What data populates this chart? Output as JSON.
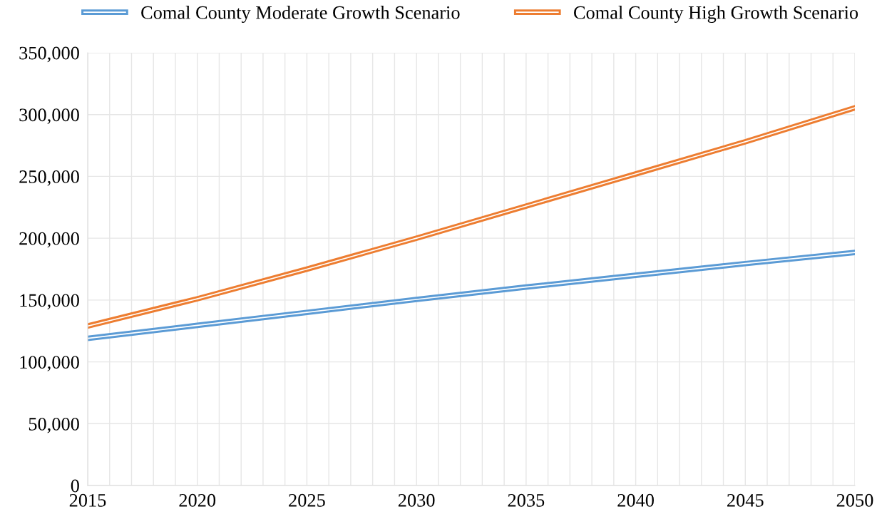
{
  "chart_data": {
    "type": "line",
    "x": [
      2015,
      2020,
      2025,
      2030,
      2035,
      2040,
      2045,
      2050
    ],
    "series": [
      {
        "name": "Comal County Moderate Growth Scenario",
        "color": "#5b9bd5",
        "values": [
          119000,
          129500,
          140000,
          150500,
          160500,
          170000,
          179500,
          188500
        ]
      },
      {
        "name": "Comal County High Growth Scenario",
        "color": "#ed7d31",
        "values": [
          129000,
          151000,
          175000,
          200000,
          226000,
          252000,
          278000,
          305500
        ]
      }
    ],
    "xlim": [
      2015,
      2050
    ],
    "xticks": [
      2015,
      {
        "value": 2016,
        "label": null
      },
      {
        "value": 2017,
        "label": null
      },
      {
        "value": 2018,
        "label": null
      },
      {
        "value": 2019,
        "label": null
      },
      2020,
      {
        "value": 2021,
        "label": null
      },
      {
        "value": 2022,
        "label": null
      },
      {
        "value": 2023,
        "label": null
      },
      {
        "value": 2024,
        "label": null
      },
      2025,
      {
        "value": 2026,
        "label": null
      },
      {
        "value": 2027,
        "label": null
      },
      {
        "value": 2028,
        "label": null
      },
      {
        "value": 2029,
        "label": null
      },
      2030,
      {
        "value": 2031,
        "label": null
      },
      {
        "value": 2032,
        "label": null
      },
      {
        "value": 2033,
        "label": null
      },
      {
        "value": 2034,
        "label": null
      },
      2035,
      {
        "value": 2036,
        "label": null
      },
      {
        "value": 2037,
        "label": null
      },
      {
        "value": 2038,
        "label": null
      },
      {
        "value": 2039,
        "label": null
      },
      2040,
      {
        "value": 2041,
        "label": null
      },
      {
        "value": 2042,
        "label": null
      },
      {
        "value": 2043,
        "label": null
      },
      {
        "value": 2044,
        "label": null
      },
      2045,
      {
        "value": 2046,
        "label": null
      },
      {
        "value": 2047,
        "label": null
      },
      {
        "value": 2048,
        "label": null
      },
      {
        "value": 2049,
        "label": null
      },
      2050
    ],
    "ylim": [
      0,
      350000
    ],
    "yticks": [
      {
        "value": 0,
        "label": "0"
      },
      {
        "value": 50000,
        "label": "50,000"
      },
      {
        "value": 100000,
        "label": "100,000"
      },
      {
        "value": 150000,
        "label": "150,000"
      },
      {
        "value": 200000,
        "label": "200,000"
      },
      {
        "value": 250000,
        "label": "250,000"
      },
      {
        "value": 300000,
        "label": "300,000"
      },
      {
        "value": 350000,
        "label": "350,000"
      }
    ],
    "grid": true,
    "legend": "top",
    "line_style": "solid",
    "marker": "none"
  }
}
